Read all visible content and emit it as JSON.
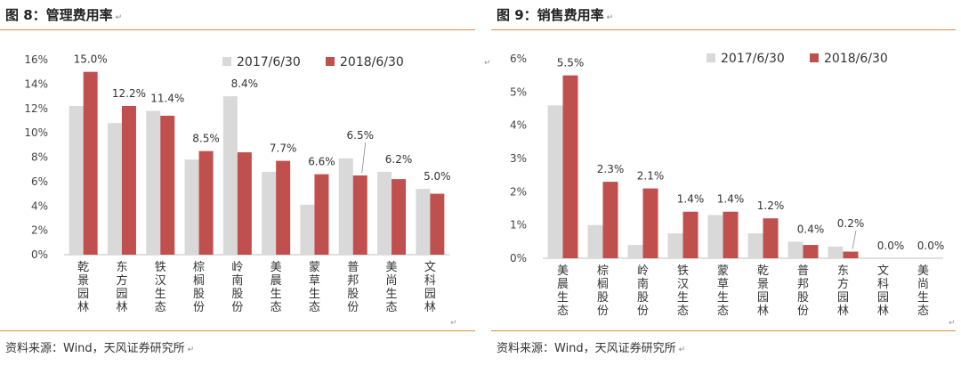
{
  "panels": [
    {
      "title": "图 8：管理费用率",
      "source": "资料来源：Wind，天风证券研究所",
      "chart_data": {
        "type": "bar",
        "categories": [
          "乾景园林",
          "东方园林",
          "铁汉生态",
          "棕榈股份",
          "岭南股份",
          "美晨生态",
          "蒙草生态",
          "普邦股份",
          "美尚生态",
          "文科园林"
        ],
        "series": [
          {
            "name": "2017/6/30",
            "values": [
              12.2,
              10.8,
              11.8,
              7.8,
              13.0,
              6.8,
              4.1,
              7.9,
              6.8,
              5.4
            ]
          },
          {
            "name": "2018/6/30",
            "values": [
              15.0,
              12.2,
              11.4,
              8.5,
              8.4,
              7.7,
              6.6,
              6.5,
              6.2,
              5.0
            ]
          }
        ],
        "data_labels": [
          "15.0%",
          "12.2%",
          "11.4%",
          "8.5%",
          "8.4%",
          "7.7%",
          "6.6%",
          "6.5%",
          "6.2%",
          "5.0%"
        ],
        "ylim": [
          0,
          16
        ],
        "yticks": [
          "0%",
          "2%",
          "4%",
          "6%",
          "8%",
          "10%",
          "12%",
          "14%",
          "16%"
        ],
        "legend_position": "top-right",
        "grid": false,
        "colors": [
          "#d9d9d9",
          "#c0504d"
        ]
      }
    },
    {
      "title": "图 9：销售费用率",
      "source": "资料来源：Wind，天风证券研究所",
      "chart_data": {
        "type": "bar",
        "categories": [
          "美晨生态",
          "棕榈股份",
          "岭南股份",
          "铁汉生态",
          "蒙草生态",
          "乾景园林",
          "普邦股份",
          "东方园林",
          "文科园林",
          "美尚生态"
        ],
        "series": [
          {
            "name": "2017/6/30",
            "values": [
              4.6,
              1.0,
              0.4,
              0.75,
              1.3,
              0.75,
              0.5,
              0.35,
              0.0,
              0.0
            ]
          },
          {
            "name": "2018/6/30",
            "values": [
              5.5,
              2.3,
              2.1,
              1.4,
              1.4,
              1.2,
              0.4,
              0.2,
              0.0,
              0.0
            ]
          }
        ],
        "data_labels": [
          "5.5%",
          "2.3%",
          "2.1%",
          "1.4%",
          "1.4%",
          "1.2%",
          "0.4%",
          "0.2%",
          "0.0%",
          "0.0%"
        ],
        "ylim": [
          0,
          6
        ],
        "yticks": [
          "0%",
          "1%",
          "2%",
          "3%",
          "4%",
          "5%",
          "6%"
        ],
        "legend_position": "top-right",
        "grid": false,
        "colors": [
          "#d9d9d9",
          "#c0504d"
        ]
      }
    }
  ]
}
